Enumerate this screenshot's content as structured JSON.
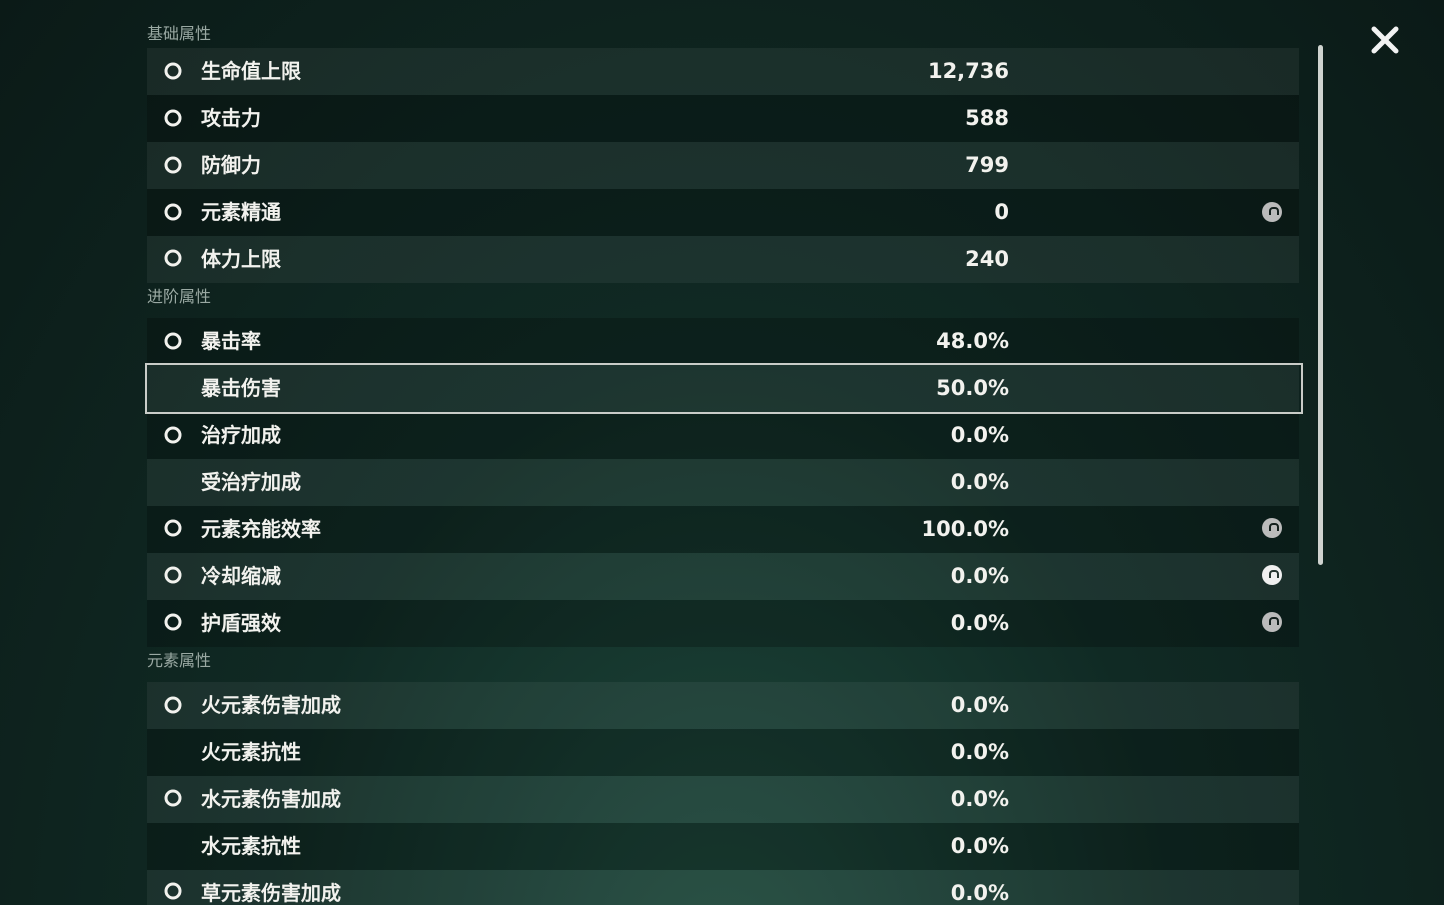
{
  "sections": [
    {
      "title": "基础属性",
      "rows": [
        {
          "label": "生命值上限",
          "value": "12,736"
        },
        {
          "label": "攻击力",
          "value": "588"
        },
        {
          "label": "防御力",
          "value": "799"
        },
        {
          "label": "元素精通",
          "value": "0"
        },
        {
          "label": "体力上限",
          "value": "240"
        }
      ]
    },
    {
      "title": "进阶属性",
      "rows": [
        {
          "label": "暴击率",
          "value": "48.0%"
        },
        {
          "label": "暴击伤害",
          "value": "50.0%"
        },
        {
          "label": "治疗加成",
          "value": "0.0%"
        },
        {
          "label": "受治疗加成",
          "value": "0.0%"
        },
        {
          "label": "元素充能效率",
          "value": "100.0%"
        },
        {
          "label": "冷却缩减",
          "value": "0.0%"
        },
        {
          "label": "护盾强效",
          "value": "0.0%"
        }
      ]
    },
    {
      "title": "元素属性",
      "rows": [
        {
          "label": "火元素伤害加成",
          "value": "0.0%"
        },
        {
          "label": "火元素抗性",
          "value": "0.0%"
        },
        {
          "label": "水元素伤害加成",
          "value": "0.0%"
        },
        {
          "label": "水元素抗性",
          "value": "0.0%"
        },
        {
          "label": "草元素伤害加成",
          "value": "0.0%"
        }
      ]
    }
  ]
}
